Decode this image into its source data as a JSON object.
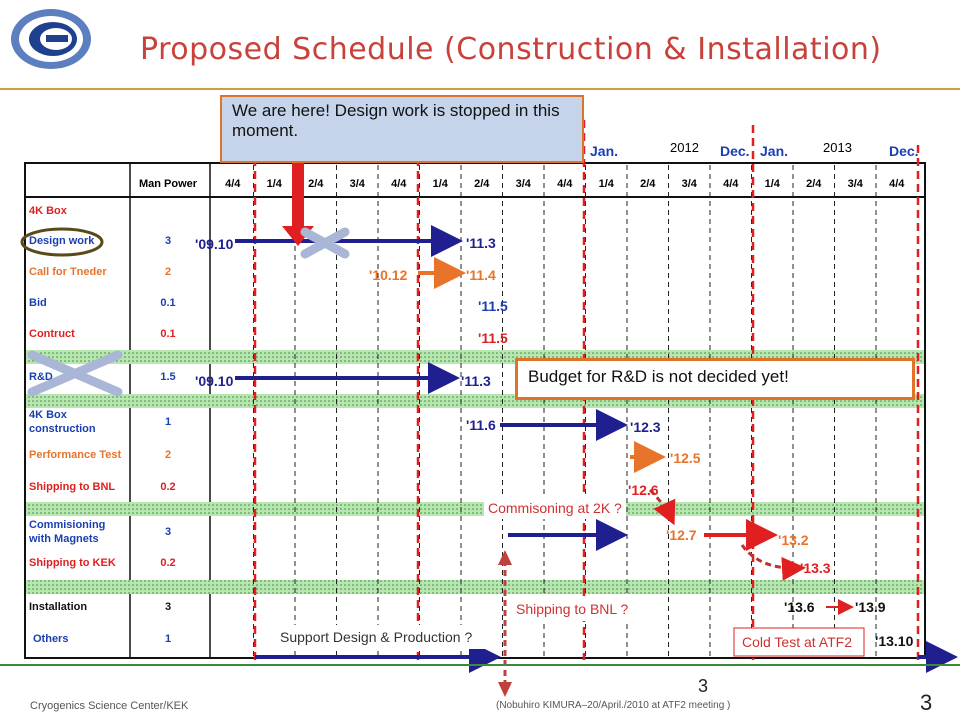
{
  "slide": {
    "title": "Proposed Schedule (Construction & Installation)",
    "footer_left": "Cryogenics Science Center/KEK",
    "footer_right": "(Nobuhiro KIMURA–20/April./2010 at ATF2 meeting )",
    "page_center": "3",
    "page_right": "3"
  },
  "callouts": {
    "here": "We are here! Design work is stopped in this moment.",
    "budget": "Budget for R&D is not decided yet!"
  },
  "table": {
    "header": {
      "man_power": "Man Power",
      "quarters": [
        "4/4",
        "1/4",
        "2/4",
        "3/4",
        "4/4",
        "1/4",
        "2/4",
        "3/4",
        "4/4",
        "1/4",
        "2/4",
        "3/4",
        "4/4",
        "1/4",
        "2/4",
        "3/4",
        "4/4"
      ],
      "year_2012": "2012",
      "year_2013": "2013",
      "jan1": "Jan.",
      "dec1": "Dec.",
      "jan2": "Jan.",
      "dec2": "Dec."
    },
    "rows": [
      {
        "task": "4K Box",
        "mp": ""
      },
      {
        "task": "Design work",
        "mp": "3"
      },
      {
        "task": "Call for Tneder",
        "mp": "2"
      },
      {
        "task": "Bid",
        "mp": "0.1"
      },
      {
        "task": "Contruct",
        "mp": "0.1"
      },
      {
        "task": "R&D",
        "mp": "1.5"
      },
      {
        "task": "4K Box construction",
        "mp": "1"
      },
      {
        "task": "Performance Test",
        "mp": "2"
      },
      {
        "task": "Shipping to BNL",
        "mp": "0.2"
      },
      {
        "task": "Commisioning with Magnets",
        "mp": "3"
      },
      {
        "task": "Shipping to KEK",
        "mp": "0.2"
      },
      {
        "task": "Installation",
        "mp": "3"
      },
      {
        "task": "Others",
        "mp": "1"
      }
    ]
  },
  "labels": {
    "d0910a": "'09.10",
    "d113a": "'11.3",
    "d1012": "'10.12",
    "d114": "'11.4",
    "d115a": "'11.5",
    "d115b": "'11.5",
    "d0910b": "'09.10",
    "d113b": "'11.3",
    "d116": "'11.6",
    "d123": "'12.3",
    "d125": "'12.5",
    "d126": "'12.6",
    "d127": "'12.7",
    "d132": "'13.2",
    "d133": "'13.3",
    "d136": "'13.6",
    "d139": "'13.9",
    "d1310": "'13.10",
    "commisioning": "Commisoning at 2K ?",
    "shipping_bnl": "Shipping to  BNL ?",
    "support": "Support Design & Production ?",
    "cold_test": "Cold Test at ATF2"
  },
  "colors": {
    "accent": "#c8413a",
    "blue_arrow": "#1f1f8f",
    "orange": "#e8732a",
    "red": "#e02020",
    "task_red": "#e02020",
    "task_blue": "#1a3fb0"
  }
}
